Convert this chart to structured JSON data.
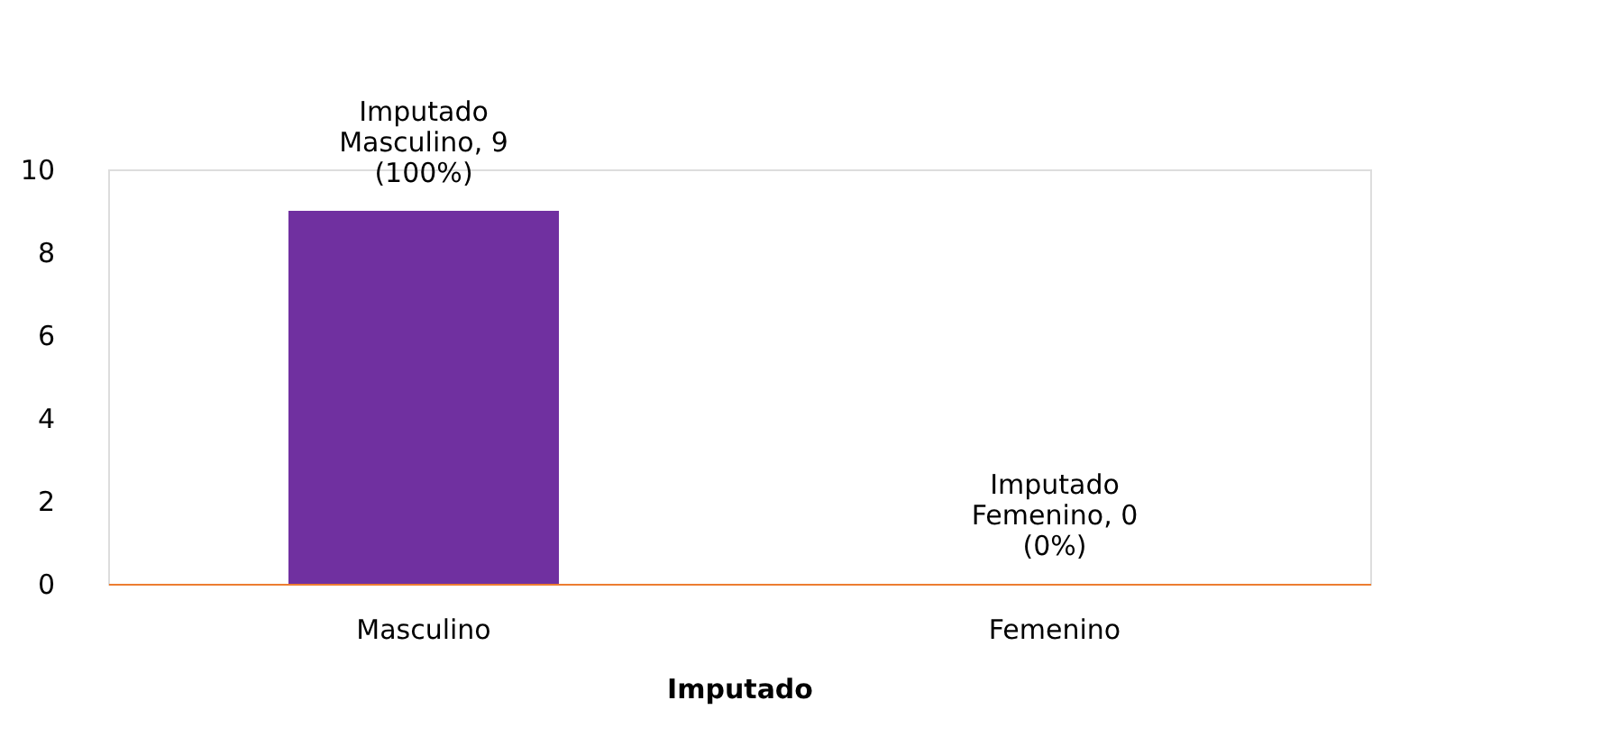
{
  "chart_data": {
    "type": "bar",
    "xlabel": "Imputado",
    "categories": [
      "Masculino",
      "Femenino"
    ],
    "values": [
      9,
      0
    ],
    "color": "#7030a0",
    "value_labels": [
      "Imputado\nMasculino, 9\n(100%)",
      "Imputado\nFemenino, 0\n(0%)"
    ],
    "ylim": [
      0,
      10
    ],
    "yticks": [
      0,
      2,
      4,
      6,
      8,
      10
    ],
    "grid": false
  }
}
